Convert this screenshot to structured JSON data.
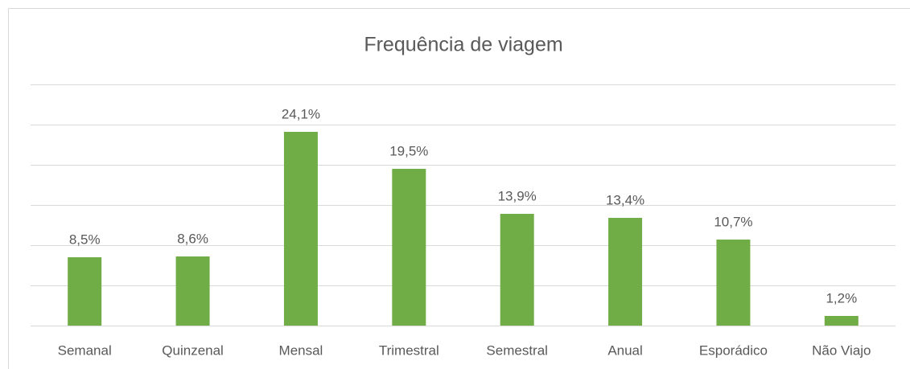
{
  "chart_data": {
    "type": "bar",
    "title": "Frequência de viagem",
    "categories": [
      "Semanal",
      "Quinzenal",
      "Mensal",
      "Trimestral",
      "Semestral",
      "Anual",
      "Esporádico",
      "Não Viajo"
    ],
    "values": [
      8.5,
      8.6,
      24.1,
      19.5,
      13.9,
      13.4,
      10.7,
      1.2
    ],
    "value_labels": [
      "8,5%",
      "8,6%",
      "24,1%",
      "19,5%",
      "13,9%",
      "13,4%",
      "10,7%",
      "1,2%"
    ],
    "color": "#70ad47",
    "ylim": [
      0,
      30
    ],
    "yticks": [
      0,
      5,
      10,
      15,
      20,
      25,
      30
    ],
    "grid": true
  }
}
